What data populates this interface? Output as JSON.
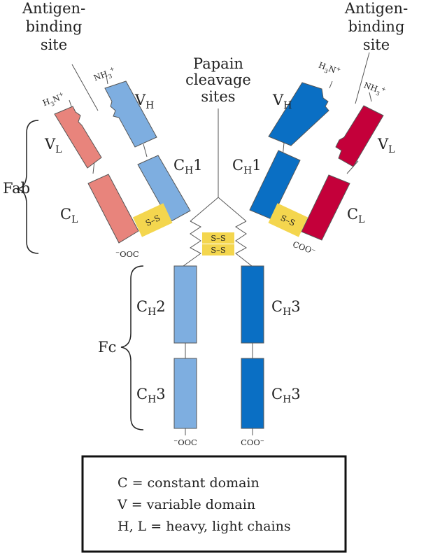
{
  "labels": {
    "antigen_site_left_1": "Antigen-",
    "antigen_site_left_2": "binding",
    "antigen_site_left_3": "site",
    "antigen_site_right_1": "Antigen-",
    "antigen_site_right_2": "binding",
    "antigen_site_right_3": "site",
    "papain_1": "Papain",
    "papain_2": "cleavage",
    "papain_3": "sites",
    "fab": "Fab",
    "fc": "Fc"
  },
  "domains": {
    "left_vl": {
      "main": "V",
      "sub": "L"
    },
    "left_cl": {
      "main": "C",
      "sub": "L"
    },
    "left_vh": {
      "main": "V",
      "sub": "H"
    },
    "left_ch1": {
      "main": "C",
      "sub": "H",
      "suffix": "1"
    },
    "right_vh": {
      "main": "V",
      "sub": "H"
    },
    "right_ch1": {
      "main": "C",
      "sub": "H",
      "suffix": "1"
    },
    "right_vl": {
      "main": "V",
      "sub": "L"
    },
    "right_cl": {
      "main": "C",
      "sub": "L"
    },
    "fc_left_ch2": {
      "main": "C",
      "sub": "H",
      "suffix": "2"
    },
    "fc_left_ch3": {
      "main": "C",
      "sub": "H",
      "suffix": "3"
    },
    "fc_right_ch3_upper": {
      "main": "C",
      "sub": "H",
      "suffix": "3"
    },
    "fc_right_ch3_lower": {
      "main": "C",
      "sub": "H",
      "suffix": "3"
    }
  },
  "termini": {
    "left_light_n": {
      "a": "H",
      "b": "3",
      "c": "N",
      "d": "+"
    },
    "left_heavy_n": {
      "a": "NH",
      "b": "3",
      "c": "+"
    },
    "right_heavy_n": {
      "a": "H",
      "b": "3",
      "c": "N",
      "d": "+"
    },
    "right_light_n": {
      "a": "NH",
      "b": "3",
      "c": "+"
    },
    "left_light_c": "⁻OOC",
    "right_light_c": "COO⁻",
    "fc_left_c": "⁻OOC",
    "fc_right_c": "COO⁻"
  },
  "disulfide": {
    "label": "S–S",
    "left": "S–S",
    "right": "S–S",
    "hinge_top": "S–S",
    "hinge_bottom": "S–S"
  },
  "legend": {
    "line1": "C = constant domain",
    "line2": "V = variable domain",
    "line3": "H, L = heavy, light chains"
  },
  "colors": {
    "light_chain_left": "#e8847c",
    "heavy_chain_left": "#7eaee0",
    "heavy_chain_right": "#0a6fc4",
    "light_chain_right": "#c4003a",
    "disulfide_bond": "#f4d64e",
    "outline": "#555555"
  }
}
